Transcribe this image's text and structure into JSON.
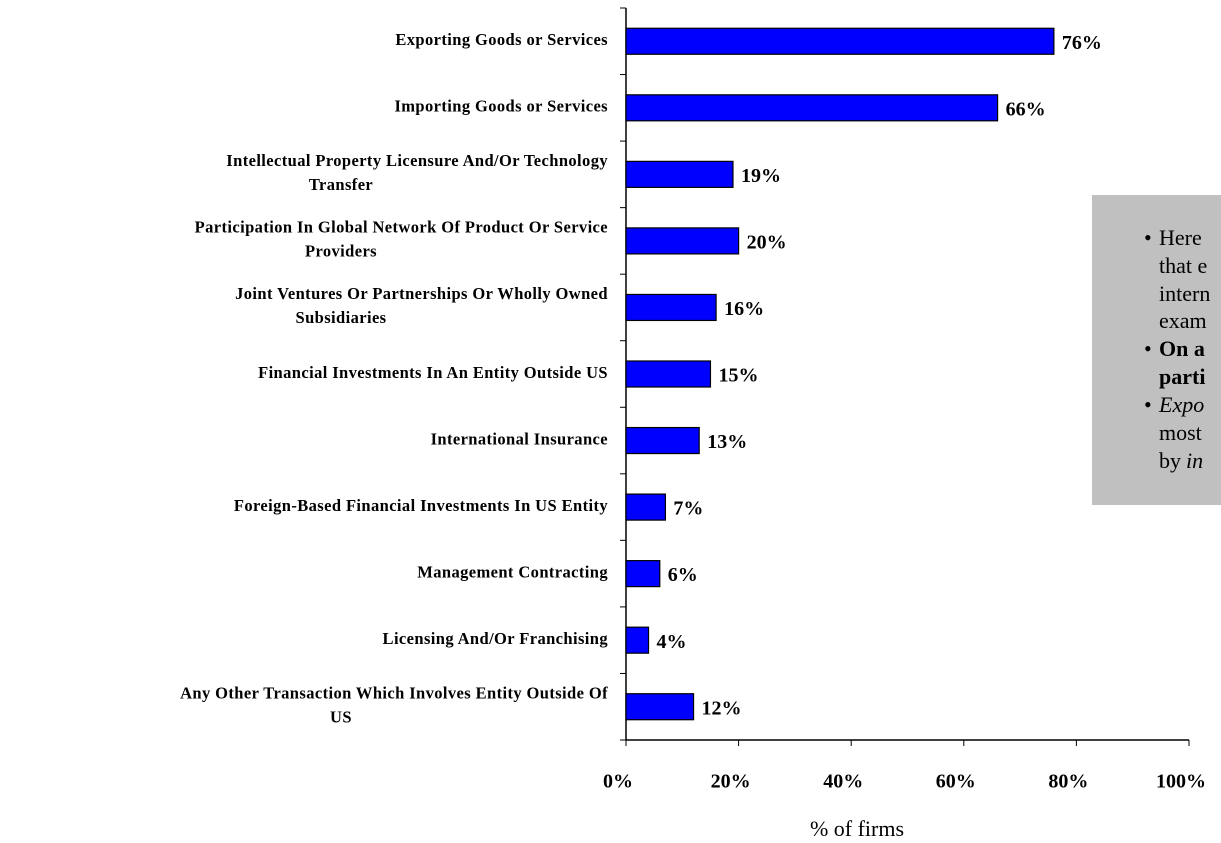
{
  "chart_data": {
    "type": "bar",
    "orientation": "horizontal",
    "categories": [
      [
        "Exporting Goods or Services"
      ],
      [
        "Importing Goods or Services"
      ],
      [
        "Intellectual Property Licensure And/Or Technology",
        "Transfer"
      ],
      [
        "Participation In Global Network Of Product Or Service",
        "Providers"
      ],
      [
        "Joint Ventures Or Partnerships Or Wholly Owned",
        "Subsidiaries"
      ],
      [
        "Financial Investments In An Entity Outside US"
      ],
      [
        "International Insurance"
      ],
      [
        "Foreign-Based Financial Investments In US Entity"
      ],
      [
        "Management Contracting"
      ],
      [
        "Licensing And/Or Franchising"
      ],
      [
        "Any Other Transaction Which Involves Entity Outside Of",
        "US"
      ]
    ],
    "values": [
      76,
      66,
      19,
      20,
      16,
      15,
      13,
      7,
      6,
      4,
      12
    ],
    "value_labels": [
      "76%",
      "66%",
      "19%",
      "20%",
      "16%",
      "15%",
      "13%",
      "7%",
      "6%",
      "4%",
      "12%"
    ],
    "color": "#0000ff",
    "xlim": [
      0,
      100
    ],
    "xticks": [
      {
        "value": 0,
        "label": "0%"
      },
      {
        "value": 20,
        "label": "20%"
      },
      {
        "value": 40,
        "label": "40%"
      },
      {
        "value": 60,
        "label": "60%"
      },
      {
        "value": 80,
        "label": "80%"
      },
      {
        "value": 100,
        "label": "100%"
      }
    ],
    "xlabel": "% of firms",
    "annotation": {
      "lines": [
        "Here",
        "that e",
        "intern",
        "exam",
        "On a",
        "parti",
        "Expo",
        "most",
        "by",
        "in"
      ]
    }
  }
}
